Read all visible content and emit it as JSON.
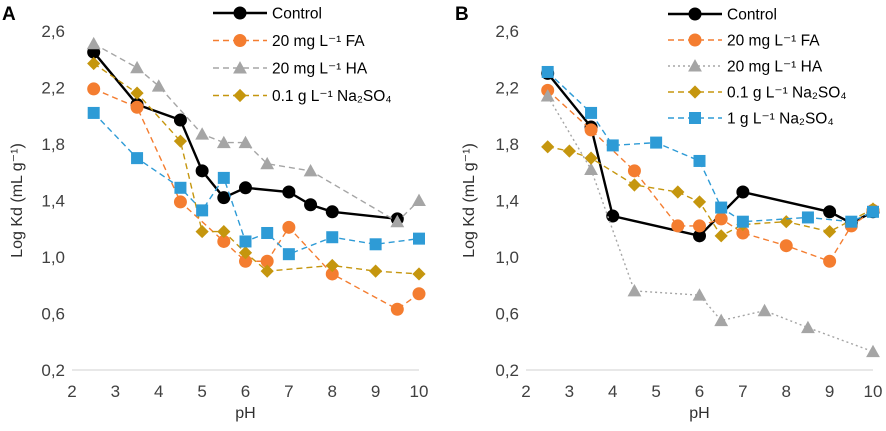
{
  "chart_data": [
    {
      "type": "line",
      "panel_label": "A",
      "xlabel": "pH",
      "ylabel": "Log Kd (mL g⁻¹)",
      "xlim": [
        2,
        10
      ],
      "ylim": [
        0.2,
        2.6
      ],
      "xticks": [
        "2",
        "3",
        "4",
        "5",
        "6",
        "7",
        "8",
        "9",
        "10"
      ],
      "yticks": [
        "0,2",
        "0,6",
        "1,0",
        "1,4",
        "1,8",
        "2,2",
        "2,6"
      ],
      "legend_position": "top-right",
      "series": [
        {
          "name": "Control",
          "legend_label": "Control",
          "color": "#000000",
          "marker": "circle",
          "dash": "solid",
          "x": [
            2.5,
            3.5,
            4.5,
            5,
            5.5,
            6,
            7,
            7.5,
            8,
            9.5
          ],
          "y": [
            2.45,
            2.08,
            1.97,
            1.61,
            1.42,
            1.49,
            1.46,
            1.37,
            1.32,
            1.27
          ]
        },
        {
          "name": "20 mg L-1 FA",
          "legend_label": "20 mg L⁻¹ FA",
          "color": "#F47D30",
          "marker": "circle",
          "dash": "dashed",
          "x": [
            2.5,
            3.5,
            4.5,
            5.5,
            6,
            6.5,
            7,
            8,
            9.5,
            10
          ],
          "y": [
            2.19,
            2.06,
            1.39,
            1.11,
            0.97,
            0.97,
            1.21,
            0.88,
            0.63,
            0.74
          ]
        },
        {
          "name": "20 mg L-1 HA",
          "legend_label": "20 mg L⁻¹  HA",
          "color": "#A5A5A5",
          "marker": "triangle",
          "dash": "dashed",
          "x": [
            2.5,
            3.5,
            4,
            5,
            5.5,
            6,
            6.5,
            7.5,
            9.5,
            10
          ],
          "y": [
            2.51,
            2.34,
            2.21,
            1.87,
            1.81,
            1.81,
            1.66,
            1.61,
            1.25,
            1.4
          ]
        },
        {
          "name": "0.1 g L-1 Na2SO4",
          "legend_label": "0.1 g L⁻¹  Na₂SO₄",
          "color": "#C5960E",
          "marker": "diamond",
          "dash": "dashed",
          "x": [
            2.5,
            3.5,
            4.5,
            5,
            5.5,
            6,
            6.5,
            8,
            9,
            10
          ],
          "y": [
            2.37,
            2.16,
            1.82,
            1.18,
            1.18,
            1.03,
            0.9,
            0.94,
            0.9,
            0.88
          ]
        },
        {
          "name": "1 g L-1 Na2SO4",
          "legend_label": "",
          "color": "#2E9BD6",
          "marker": "square",
          "dash": "dashed",
          "x": [
            2.5,
            3.5,
            4.5,
            5,
            5.5,
            6,
            6.5,
            7,
            8,
            9,
            10
          ],
          "y": [
            2.02,
            1.7,
            1.49,
            1.33,
            1.56,
            1.11,
            1.17,
            1.02,
            1.14,
            1.09,
            1.13
          ]
        }
      ]
    },
    {
      "type": "line",
      "panel_label": "B",
      "xlabel": "pH",
      "ylabel": "Log Kd (mL g⁻¹)",
      "xlim": [
        2,
        10
      ],
      "ylim": [
        0.2,
        2.6
      ],
      "xticks": [
        "2",
        "3",
        "4",
        "5",
        "6",
        "7",
        "8",
        "9",
        "10"
      ],
      "yticks": [
        "0,2",
        "0,6",
        "1,0",
        "1,4",
        "1,8",
        "2,2",
        "2,6"
      ],
      "legend_position": "top-right",
      "series": [
        {
          "name": "Control",
          "legend_label": "Control",
          "color": "#000000",
          "marker": "circle",
          "dash": "solid",
          "x": [
            2.5,
            3.5,
            4,
            6,
            7,
            9,
            9.5,
            10
          ],
          "y": [
            2.3,
            1.92,
            1.29,
            1.15,
            1.46,
            1.32,
            1.24,
            1.32
          ]
        },
        {
          "name": "20 mg L-1 FA",
          "legend_label": "20 mg L⁻¹ FA",
          "color": "#F47D30",
          "marker": "circle",
          "dash": "dashed",
          "x": [
            2.5,
            3.5,
            4.5,
            5.5,
            6,
            6.5,
            7,
            8,
            9,
            9.5,
            10
          ],
          "y": [
            2.18,
            1.9,
            1.61,
            1.22,
            1.22,
            1.27,
            1.17,
            1.08,
            0.97,
            1.22,
            1.33
          ]
        },
        {
          "name": "20 mg L-1 HA",
          "legend_label": "20 mg L⁻¹  HA",
          "color": "#A5A5A5",
          "marker": "triangle",
          "dash": "dotted",
          "x": [
            2.5,
            3.5,
            4.5,
            6,
            6.5,
            7.5,
            8.5,
            10
          ],
          "y": [
            2.14,
            1.62,
            0.76,
            0.73,
            0.55,
            0.62,
            0.5,
            0.33
          ]
        },
        {
          "name": "0.1 g L-1 Na2SO4",
          "legend_label": "0.1 g L⁻¹  Na₂SO₄",
          "color": "#C5960E",
          "marker": "diamond",
          "dash": "dashed",
          "x": [
            2.5,
            3,
            3.5,
            4.5,
            5.5,
            6,
            6.5,
            7,
            8,
            9,
            10
          ],
          "y": [
            1.78,
            1.75,
            1.7,
            1.51,
            1.46,
            1.39,
            1.15,
            1.23,
            1.25,
            1.18,
            1.34
          ]
        },
        {
          "name": "1 g L-1 Na2SO4",
          "legend_label": "1 g L⁻¹  Na₂SO₄",
          "color": "#2E9BD6",
          "marker": "square",
          "dash": "dashed",
          "x": [
            2.5,
            3.5,
            4,
            5,
            6,
            6.5,
            7,
            8.5,
            9.5,
            10
          ],
          "y": [
            2.31,
            2.02,
            1.79,
            1.81,
            1.68,
            1.35,
            1.25,
            1.28,
            1.25,
            1.32
          ]
        }
      ]
    }
  ]
}
